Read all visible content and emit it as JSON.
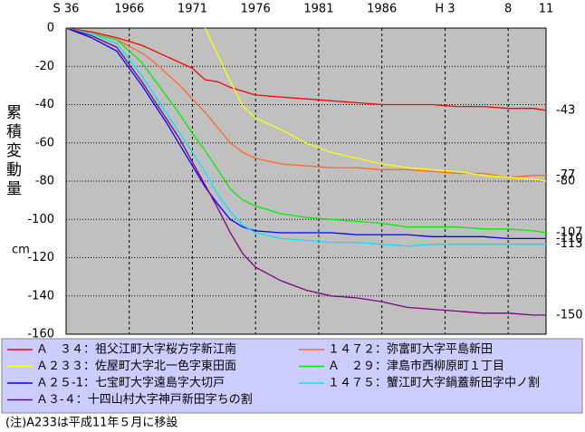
{
  "chart_data": {
    "type": "line",
    "y_label": "累積変動量",
    "y_unit": "cm",
    "note": "(注)A233は平成11年５月に移設",
    "x": [
      1961,
      1963,
      1965,
      1967,
      1968,
      1969,
      1970,
      1971,
      1972,
      1973,
      1974,
      1975,
      1976,
      1978,
      1980,
      1982,
      1984,
      1986,
      1988,
      1990,
      1992,
      1994,
      1996,
      1998,
      1999
    ],
    "xlim": [
      1961,
      1999
    ],
    "xticks": [
      {
        "value": 1961,
        "label": "S 36"
      },
      1966,
      1971,
      1976,
      1981,
      1986,
      {
        "value": 1991,
        "label": "H 3"
      },
      {
        "value": 1996,
        "label": "8"
      },
      {
        "value": 1999,
        "label": "11"
      }
    ],
    "ylim": [
      -160,
      0
    ],
    "yticks": [
      0,
      -20,
      -40,
      -60,
      -80,
      -100,
      -120,
      -140,
      -160
    ],
    "grid": true,
    "series": [
      {
        "name": "Ａ　３４：祖父江町大字桜方字新江南",
        "color": "#ff0000",
        "values": [
          0,
          -2,
          -5,
          -9,
          -12,
          -15,
          -18,
          -21,
          -27,
          -28,
          -31,
          -33,
          -35,
          -36,
          -37,
          -38,
          -39,
          -40,
          -40,
          -40,
          -41,
          -41,
          -42,
          -42,
          -43
        ]
      },
      {
        "name": "１４７２：弥富町大字平島新田",
        "color": "#ff6a20",
        "values": [
          0,
          -3,
          -6,
          -13,
          -18,
          -24,
          -30,
          -37,
          -44,
          -52,
          -60,
          -65,
          -68,
          -71,
          -72,
          -73,
          -73,
          -74,
          -74,
          -75,
          -76,
          -76,
          -78,
          -77,
          -77
        ]
      },
      {
        "name": "Ａ２３３：佐屋町大字北一色字東田面",
        "color": "#ffff00",
        "values": [
          null,
          null,
          null,
          null,
          null,
          null,
          null,
          null,
          0,
          -14,
          -28,
          -41,
          -47,
          -53,
          -60,
          -65,
          -68,
          -71,
          -73,
          -74,
          -75,
          -77,
          -78,
          -79,
          -80
        ]
      },
      {
        "name": "Ａ　２９：津島市西柳原町１丁目",
        "color": "#00ee00",
        "values": [
          0,
          -3,
          -6,
          -18,
          -27,
          -36,
          -45,
          -55,
          -64,
          -74,
          -84,
          -90,
          -93,
          -97,
          -99,
          -100,
          -101,
          -102,
          -104,
          -104,
          -104,
          -105,
          -105,
          -106,
          -107
        ]
      },
      {
        "name": "Ａ２５-1：七宝町大字遠島字大切戸",
        "color": "#0000ff",
        "values": [
          0,
          -5,
          -12,
          -30,
          -40,
          -50,
          -61,
          -72,
          -83,
          -92,
          -100,
          -104,
          -106,
          -107,
          -107,
          -107,
          -108,
          -108,
          -108,
          -109,
          -109,
          -109,
          -110,
          -110,
          -110
        ]
      },
      {
        "name": "１４７５：蟹江町大字鍋蓋新田字中ノ割",
        "color": "#00e5ff",
        "values": [
          0,
          -3,
          -8,
          -25,
          -35,
          -45,
          -55,
          -65,
          -75,
          -87,
          -96,
          -103,
          -107,
          -110,
          -111,
          -112,
          -112,
          -113,
          -114,
          -113,
          -113,
          -113,
          -113,
          -113,
          -113
        ]
      },
      {
        "name": "Ａ３-４：十四山村大字神戸新田字ちの割",
        "color": "#800080",
        "values": [
          0,
          -4,
          -10,
          -28,
          -38,
          -48,
          -58,
          -70,
          -82,
          -94,
          -107,
          -118,
          -125,
          -132,
          -137,
          -140,
          -141,
          -143,
          -146,
          -147,
          -148,
          -149,
          -149,
          -150,
          -150
        ]
      }
    ]
  }
}
